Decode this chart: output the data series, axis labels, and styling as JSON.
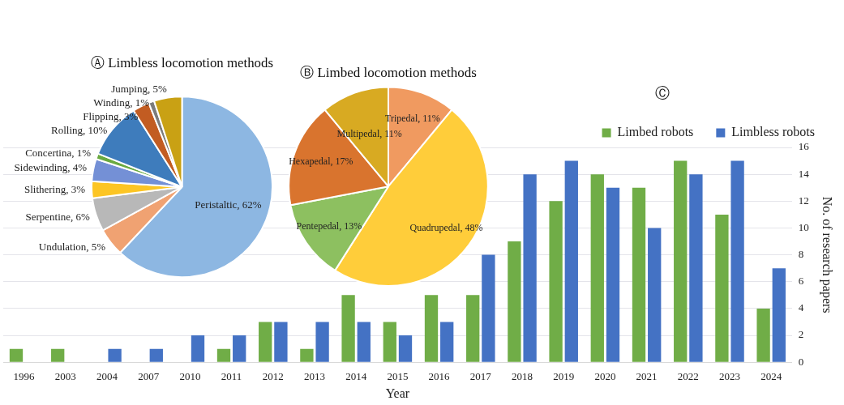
{
  "chart_data": [
    {
      "type": "pie",
      "title": "Ⓐ Limbless locomotion methods",
      "categories": [
        "Peristaltic",
        "Undulation",
        "Serpentine",
        "Slithering",
        "Sidewinding",
        "Concertina",
        "Rolling",
        "Flipping",
        "Winding",
        "Jumping"
      ],
      "values": [
        62,
        5,
        6,
        3,
        4,
        1,
        10,
        3,
        1,
        5
      ],
      "value_labels": [
        "62%",
        "5%",
        "6%",
        "3%",
        "4%",
        "1%",
        "10%",
        "3%",
        "1%",
        "5%"
      ],
      "colors": [
        "#8db7e2",
        "#f0a272",
        "#b8b8b8",
        "#fcc524",
        "#7490d6",
        "#6aaa40",
        "#3e7cbc",
        "#c25c22",
        "#7c7c7c",
        "#c9a114"
      ]
    },
    {
      "type": "pie",
      "title": "Ⓑ Limbed locomotion methods",
      "categories": [
        "Tripedal",
        "Quadrupedal",
        "Pentepedal",
        "Hexapedal",
        "Multipedal"
      ],
      "values": [
        11,
        48,
        13,
        17,
        11
      ],
      "value_labels": [
        "11%",
        "48%",
        "13%",
        "17%",
        "11%"
      ],
      "colors": [
        "#f09a60",
        "#ffcd3a",
        "#8dc060",
        "#d9742e",
        "#d8aa22"
      ]
    },
    {
      "type": "bar",
      "title": "Ⓒ",
      "xlabel": "Year",
      "ylabel": "No. of research papers",
      "categories": [
        "1996",
        "2003",
        "2004",
        "2007",
        "2010",
        "2011",
        "2012",
        "2013",
        "2014",
        "2015",
        "2016",
        "2017",
        "2018",
        "2019",
        "2020",
        "2021",
        "2022",
        "2023",
        "2024"
      ],
      "series": [
        {
          "name": "Limbed robots",
          "color": "#70ad47",
          "values": [
            1,
            1,
            0,
            0,
            0,
            1,
            3,
            1,
            5,
            3,
            5,
            5,
            9,
            12,
            14,
            13,
            15,
            11,
            4
          ]
        },
        {
          "name": "Limbless robots",
          "color": "#4472c4",
          "values": [
            0,
            0,
            1,
            1,
            2,
            2,
            3,
            3,
            3,
            2,
            3,
            8,
            14,
            15,
            13,
            10,
            14,
            15,
            7
          ]
        }
      ],
      "ylim": [
        0,
        16
      ],
      "yticks": [
        0,
        2,
        4,
        6,
        8,
        10,
        12,
        14,
        16
      ],
      "grid": "y",
      "legend": "top right"
    }
  ]
}
